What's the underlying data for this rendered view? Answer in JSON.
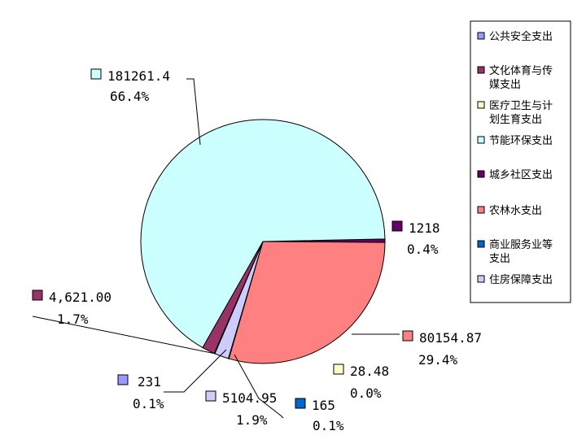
{
  "chart_data": {
    "type": "pie",
    "slices": [
      {
        "name": "公共安全支出",
        "value": 231,
        "value_label": "231",
        "percent_label": "0.1%",
        "color": "#9999ff"
      },
      {
        "name": "文化体育与传媒支出",
        "value": 4621.0,
        "value_label": "4,621.00",
        "percent_label": "1.7%",
        "color": "#993366"
      },
      {
        "name": "医疗卫生与计划生育支出",
        "value": 28.48,
        "value_label": "28.48",
        "percent_label": "0.0%",
        "color": "#ffffcc"
      },
      {
        "name": "节能环保支出",
        "value": 181261.4,
        "value_label": "181261.4",
        "percent_label": "66.4%",
        "color": "#ccffff"
      },
      {
        "name": "城乡社区支出",
        "value": 1218,
        "value_label": "1218",
        "percent_label": "0.4%",
        "color": "#660066"
      },
      {
        "name": "农林水支出",
        "value": 80154.87,
        "value_label": "80154.87",
        "percent_label": "29.4%",
        "color": "#ff8080"
      },
      {
        "name": "商业服务业等支出",
        "value": 165,
        "value_label": "165",
        "percent_label": "0.1%",
        "color": "#0066cc"
      },
      {
        "name": "住房保障支出",
        "value": 5104.95,
        "value_label": "5104.95",
        "percent_label": "1.9%",
        "color": "#ccccff"
      }
    ],
    "legend_position": "right",
    "title": ""
  }
}
